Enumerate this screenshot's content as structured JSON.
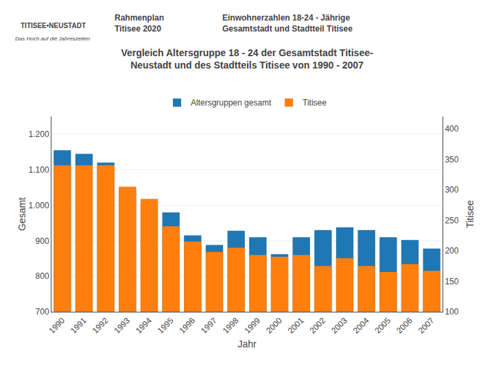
{
  "chart_data": {
    "type": "bar",
    "title": "Vergleich Altersgruppe 18 - 24 der Gesamtstadt Titisee-\nNeustadt und des Stadtteils Titisee von 1990 - 2007",
    "annotations": [
      "TITISEE•NEUSTADT",
      "Das Hoch auf die Jahreszeiten",
      "Rahmenplan\nTitisee 2020",
      "Einwohnerzahlen 18-24 - Jährige\nGesamtstadt und Stadtteil Titisee"
    ],
    "xlabel": "Jahr",
    "ylabel": "Gesamt",
    "y2label": "Titisee",
    "categories": [
      "1990",
      "1991",
      "1992",
      "1993",
      "1994",
      "1995",
      "1996",
      "1997",
      "1998",
      "1999",
      "2000",
      "2001",
      "2002",
      "2003",
      "2004",
      "2005",
      "2006",
      "2007"
    ],
    "series": [
      {
        "name": "Altersgruppen gesamt",
        "values": [
          1155,
          1145,
          1120,
          1045,
          1000,
          980,
          915,
          888,
          928,
          910,
          862,
          910,
          930,
          938,
          930,
          910,
          902,
          878
        ]
      },
      {
        "name": "Titisee",
        "axis": "y2",
        "values": [
          340,
          340,
          340,
          305,
          285,
          240,
          215,
          198,
          205,
          193,
          190,
          193,
          175,
          188,
          175,
          165,
          178,
          167
        ]
      }
    ],
    "ylim": [
      700,
      1250
    ],
    "yticks": [
      700,
      800,
      900,
      {
        "value": 1000,
        "label": "1.000"
      },
      {
        "value": 1100,
        "label": "1.100"
      },
      {
        "value": 1200,
        "label": "1.200"
      }
    ],
    "y2lim": [
      100,
      420
    ],
    "y2ticks": [
      100,
      150,
      200,
      250,
      300,
      350,
      400
    ],
    "grid": true,
    "legend": "top"
  }
}
